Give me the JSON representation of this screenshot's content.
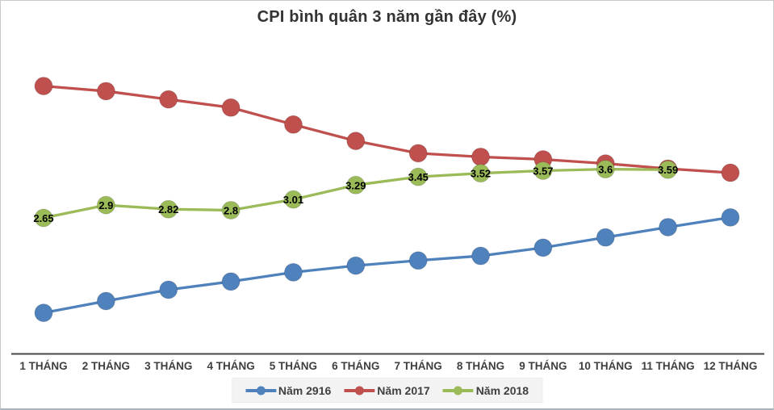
{
  "frame": {
    "background": "#ffffff",
    "border_color": "#c9c9c9",
    "bottom_edge_color": "#aab3bd"
  },
  "chart_data": {
    "type": "line",
    "title": "CPI bình quân 3 năm gần đây (%)",
    "title_color": "#333333",
    "xlabel": "",
    "ylabel": "",
    "categories": [
      "1 THÁNG",
      "2 THÁNG",
      "3 THÁNG",
      "4 THÁNG",
      "5 THÁNG",
      "6 THÁNG",
      "7 THÁNG",
      "8 THÁNG",
      "9 THÁNG",
      "10 THÁNG",
      "11 THÁNG",
      "12 THÁNG"
    ],
    "series": [
      {
        "name": "Năm 2916",
        "color": "#4F81BD",
        "marker": "circle",
        "data_labels": false,
        "values": [
          0.8,
          1.03,
          1.25,
          1.41,
          1.59,
          1.72,
          1.82,
          1.91,
          2.07,
          2.27,
          2.47,
          2.66
        ]
      },
      {
        "name": "Năm 2017",
        "color": "#C0504D",
        "marker": "circle",
        "data_labels": false,
        "values": [
          5.22,
          5.12,
          4.96,
          4.8,
          4.47,
          4.15,
          3.91,
          3.84,
          3.79,
          3.71,
          3.61,
          3.53
        ]
      },
      {
        "name": "Năm 2018",
        "color": "#9BBB59",
        "marker": "circle",
        "data_labels": true,
        "values": [
          2.65,
          2.9,
          2.82,
          2.8,
          3.01,
          3.29,
          3.45,
          3.52,
          3.57,
          3.6,
          3.59
        ]
      }
    ],
    "ylim": [
      0,
      6
    ],
    "grid": false,
    "y_axis_visible": false,
    "legend_position": "bottom-center",
    "legend_background": "#f3f3f3",
    "axis_color": "#474747",
    "category_label_color": "#3f3f3f",
    "data_label_color": "#000000"
  }
}
